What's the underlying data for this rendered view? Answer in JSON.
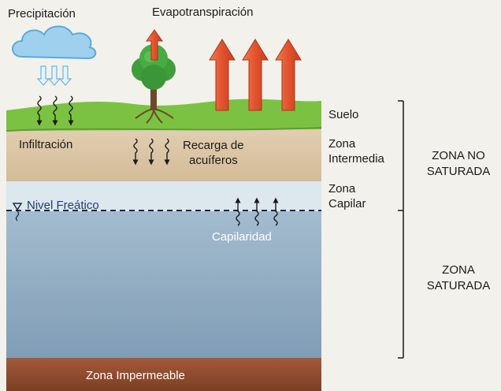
{
  "labels": {
    "precipitation": "Precipitación",
    "evapotranspiration": "Evapotranspiración",
    "infiltration": "Infiltración",
    "aquifer_recharge_line1": "Recarga de",
    "aquifer_recharge_line2": "acuíferos",
    "water_table": "Nivel Freático",
    "capillarity": "Capilaridad",
    "impermeable_zone": "Zona Impermeable"
  },
  "layers": {
    "soil": "Suelo",
    "intermediate_line1": "Zona",
    "intermediate_line2": "Intermedia",
    "capillary_line1": "Zona",
    "capillary_line2": "Capilar"
  },
  "zones": {
    "unsaturated_line1": "ZONA NO",
    "unsaturated_line2": "SATURADA",
    "saturated_line1": "ZONA",
    "saturated_line2": "SATURADA"
  },
  "colors": {
    "background": "#f2f1ec",
    "grass": "#7cc242",
    "intermediate_soil": "#d9c3a3",
    "capillary_zone": "#dde7ee",
    "saturated_zone": "#90abc1",
    "impermeable_layer": "#8e4a2c",
    "arrow_red": "#e2522e",
    "cloud": "#9fd0ee",
    "tree": "#3d9e3a"
  }
}
